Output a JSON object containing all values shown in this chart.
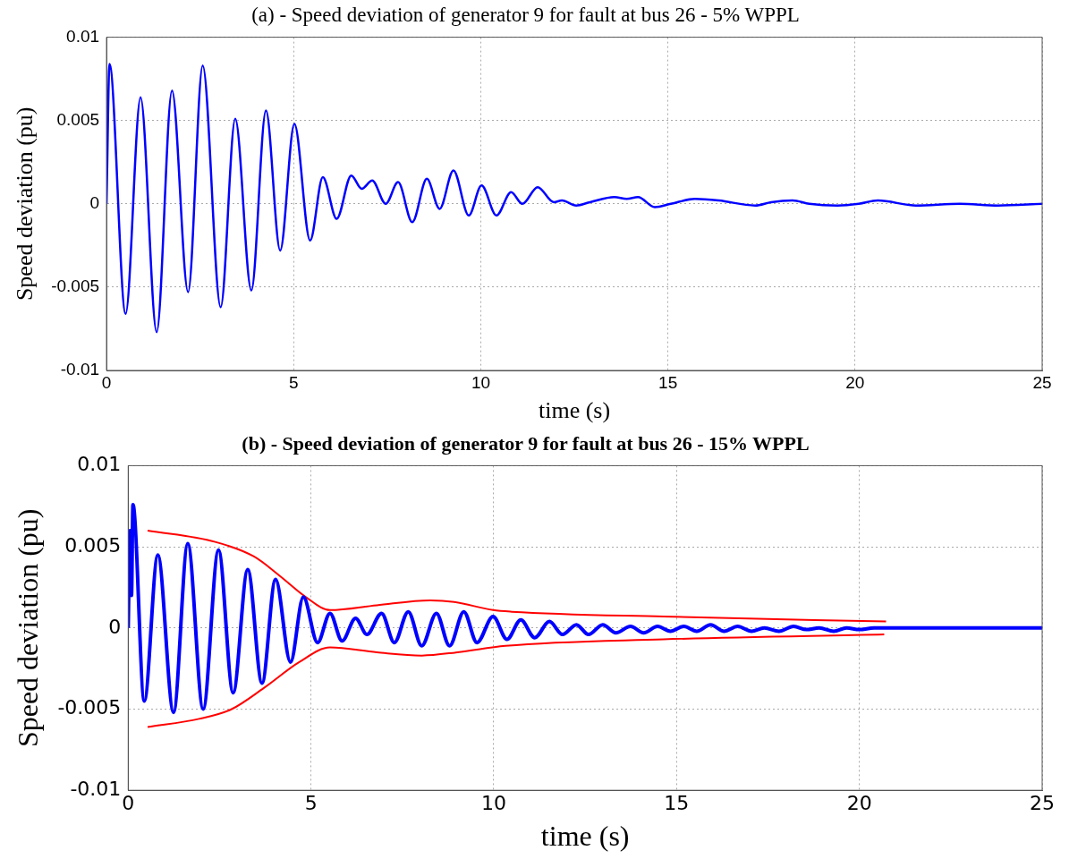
{
  "chart_data": [
    {
      "type": "line",
      "title": "(a) - Speed deviation of generator 9 for fault at bus 26 - 5% WPPL",
      "xlabel": "time (s)",
      "ylabel": "Speed deviation (pu)",
      "xlim": [
        0,
        25
      ],
      "ylim": [
        -0.01,
        0.01
      ],
      "xticks": [
        0,
        5,
        10,
        15,
        20,
        25
      ],
      "yticks": [
        -0.01,
        -0.005,
        0,
        0.005,
        0.01
      ],
      "grid": true,
      "legend": false,
      "marker": "none",
      "line_style": "solid",
      "series": [
        {
          "color": "#0000ff",
          "x": [
            0,
            0.08,
            0.51,
            0.91,
            1.34,
            1.75,
            2.18,
            2.57,
            3.05,
            3.44,
            3.87,
            4.26,
            4.64,
            5.02,
            5.44,
            5.78,
            6.15,
            6.54,
            6.82,
            7.1,
            7.46,
            7.79,
            8.17,
            8.56,
            8.9,
            9.27,
            9.68,
            10.02,
            10.42,
            10.81,
            11.11,
            11.52,
            11.95,
            12.17,
            12.55,
            12.92,
            13.57,
            13.9,
            14.2,
            14.65,
            15.08,
            15.72,
            16.36,
            17.33,
            17.76,
            18.33,
            18.78,
            19.53,
            20.1,
            20.61,
            21.63,
            22.8,
            23.82,
            25
          ],
          "values": [
            0,
            0.0084,
            -0.0066,
            0.0064,
            -0.0077,
            0.0068,
            -0.0053,
            0.0083,
            -0.0062,
            0.0051,
            -0.0052,
            0.0056,
            -0.0028,
            0.0048,
            -0.0022,
            0.0016,
            -0.0009,
            0.0017,
            0.0009,
            0.0014,
            0,
            0.0013,
            -0.0011,
            0.0015,
            -0.0003,
            0.002,
            -0.0007,
            0.0011,
            -0.0007,
            0.0007,
            0,
            0.001,
            0.0001,
            0.0002,
            -0.0001,
            0.0001,
            0.0004,
            0.0003,
            0.0004,
            -0.0002,
            0,
            0.0003,
            0.0002,
            -0.0001,
            0.0001,
            0.0002,
            0,
            -0.0001,
            0,
            0.0002,
            -0.0001,
            0,
            -0.0001,
            0
          ]
        }
      ]
    },
    {
      "type": "line",
      "title": "(b) - Speed deviation of generator 9 for fault at bus 26 - 15% WPPL",
      "xlabel": "time (s)",
      "ylabel": "Speed deviation (pu)",
      "xlim": [
        0,
        25
      ],
      "ylim": [
        -0.01,
        0.01
      ],
      "xticks": [
        0,
        5,
        10,
        15,
        20,
        25
      ],
      "yticks": [
        -0.01,
        -0.005,
        0,
        0.005,
        0.01
      ],
      "grid": true,
      "legend": false,
      "marker": "none",
      "line_style": "solid",
      "series": [
        {
          "color": "#0000ff",
          "x": [
            0,
            0.05,
            0.09,
            0.13,
            0.44,
            0.81,
            1.24,
            1.63,
            2.05,
            2.47,
            2.87,
            3.27,
            3.66,
            4.03,
            4.44,
            4.79,
            5.18,
            5.52,
            5.85,
            6.22,
            6.53,
            6.93,
            7.28,
            7.66,
            8.03,
            8.43,
            8.79,
            9.18,
            9.54,
            9.98,
            10.36,
            10.74,
            11.12,
            11.52,
            11.88,
            12.26,
            12.59,
            12.98,
            13.34,
            13.74,
            14.1,
            14.48,
            14.83,
            15.2,
            15.55,
            15.93,
            16.3,
            16.67,
            17.05,
            17.4,
            17.8,
            18.2,
            18.55,
            18.9,
            19.3,
            19.65,
            20,
            20.4,
            25
          ],
          "values": [
            0,
            0.006,
            0.002,
            0.0076,
            -0.0045,
            0.0045,
            -0.0052,
            0.0052,
            -0.005,
            0.0048,
            -0.004,
            0.0036,
            -0.0034,
            0.003,
            -0.0021,
            0.0019,
            -0.0009,
            0.0009,
            -0.0008,
            0.0006,
            -0.0004,
            0.0009,
            -0.0009,
            0.001,
            -0.0011,
            0.0009,
            -0.0011,
            0.001,
            -0.0009,
            0.0007,
            -0.0007,
            0.0005,
            -0.0006,
            0.0004,
            -0.0004,
            0.0002,
            -0.0004,
            0.0002,
            -0.0003,
            0.0001,
            -0.0003,
            0.0001,
            -0.0002,
            0.0001,
            -0.0002,
            0.0002,
            -0.0002,
            0.0001,
            -0.0002,
            0,
            -0.0002,
            0.0001,
            -0.0001,
            0,
            -0.0002,
            0,
            -0.0001,
            0,
            0
          ]
        },
        {
          "color": "#ff0000",
          "x": [
            0.53,
            2.38,
            3.44,
            4.15,
            4.86,
            5.52,
            6.8,
            8.26,
            8.92,
            9.98,
            10.49,
            14.64,
            20.73
          ],
          "values": [
            0.006,
            0.0053,
            0.0044,
            0.0032,
            0.0019,
            0.0011,
            0.0014,
            0.0017,
            0.0016,
            0.0011,
            0.001,
            0.0007,
            0.0004
          ]
        },
        {
          "color": "#ff0000",
          "x": [
            0.53,
            1.94,
            2.83,
            3.71,
            4.68,
            5.52,
            6.8,
            8.03,
            9,
            10.32,
            14.64,
            20.68
          ],
          "values": [
            -0.0061,
            -0.0056,
            -0.005,
            -0.0037,
            -0.0021,
            -0.0012,
            -0.0015,
            -0.0017,
            -0.0015,
            -0.0011,
            -0.0007,
            -0.0004
          ]
        }
      ]
    }
  ]
}
